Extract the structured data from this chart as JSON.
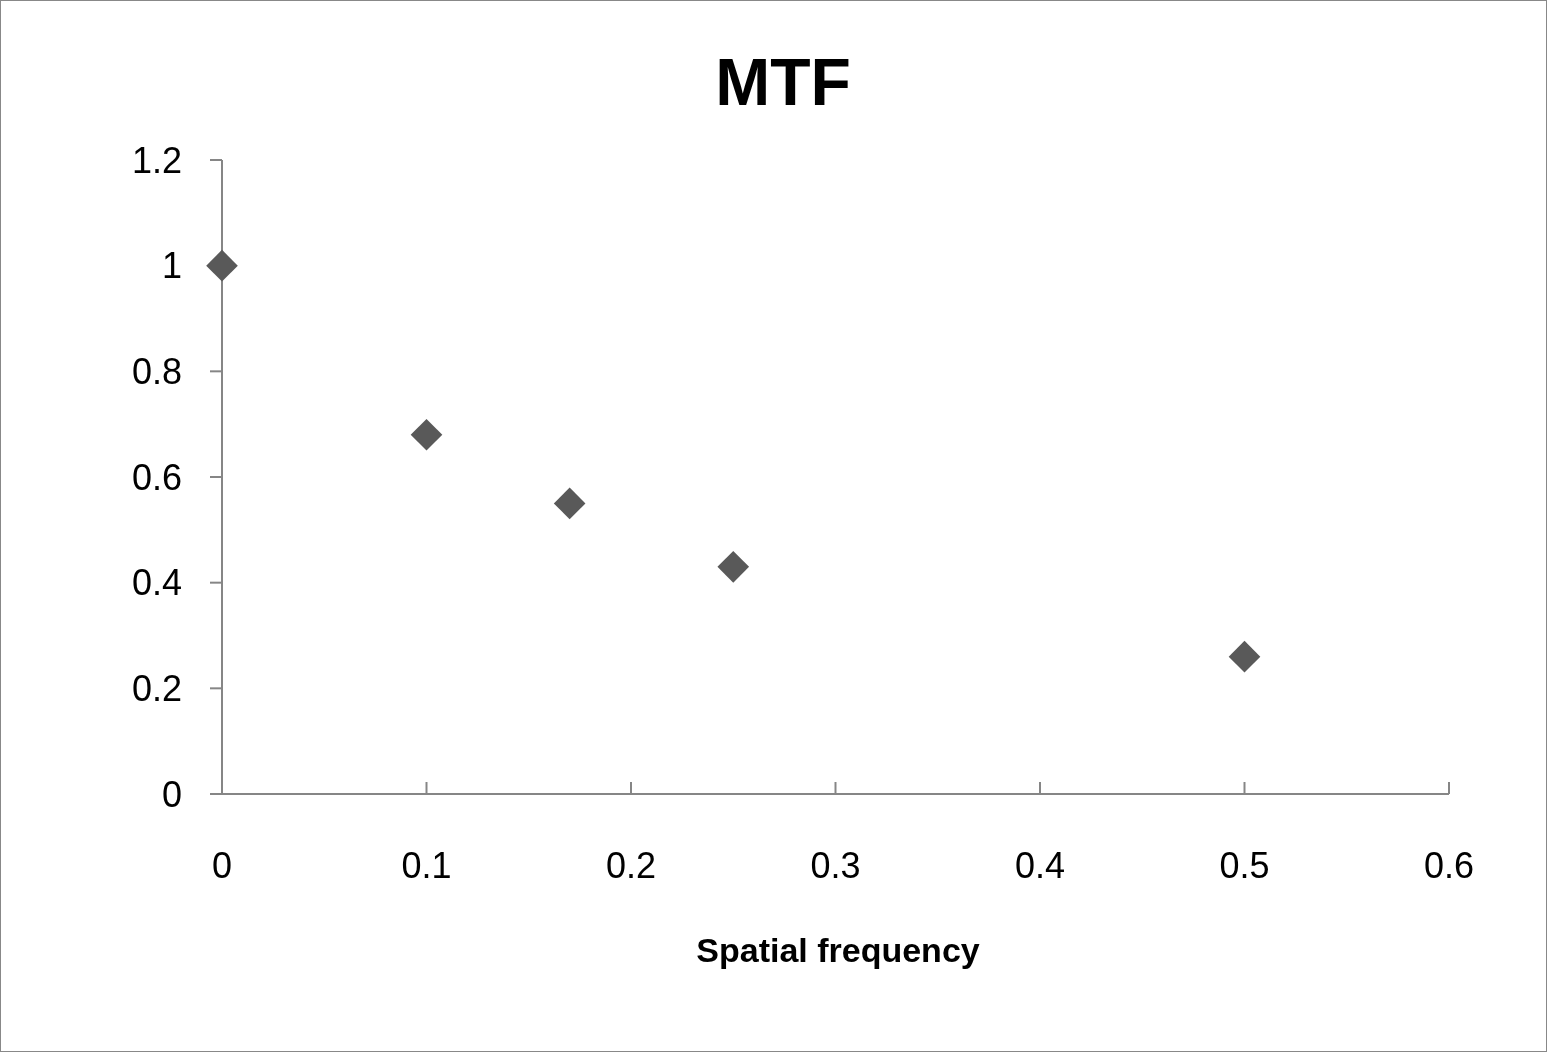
{
  "chart_data": {
    "type": "scatter",
    "title": "MTF",
    "xlabel": "Spatial frequency",
    "x": [
      0,
      0.1,
      0.17,
      0.25,
      0.5
    ],
    "series": [
      {
        "color": "#595959",
        "values": [
          1.0,
          0.68,
          0.55,
          0.43,
          0.26
        ]
      }
    ],
    "xlim": [
      0,
      0.6
    ],
    "xticks": [
      0,
      0.1,
      0.2,
      0.3,
      0.4,
      0.5,
      0.6
    ],
    "ylim": [
      0,
      1.2
    ],
    "yticks": [
      0,
      0.2,
      0.4,
      0.6,
      0.8,
      1,
      1.2
    ],
    "marker": "diamond",
    "grid": false,
    "legend": false
  }
}
